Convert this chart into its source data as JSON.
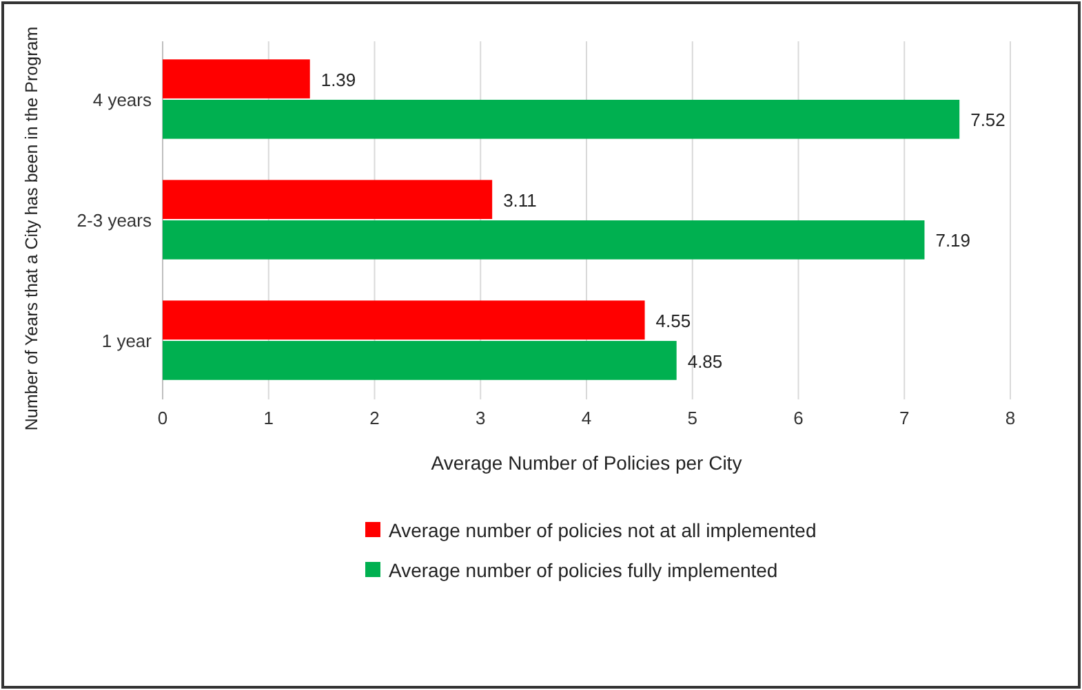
{
  "chart_data": {
    "type": "bar",
    "orientation": "horizontal",
    "categories": [
      "4 years",
      "2-3 years",
      "1 year"
    ],
    "series": [
      {
        "name": "Average number of policies not at all implemented",
        "color": "#ff0000",
        "values": [
          1.39,
          3.11,
          4.55
        ]
      },
      {
        "name": "Average number of policies fully implemented",
        "color": "#00b050",
        "values": [
          7.52,
          7.19,
          4.85
        ]
      }
    ],
    "xlim": [
      0,
      8
    ],
    "xticks": [
      0,
      1,
      2,
      3,
      4,
      5,
      6,
      7,
      8
    ],
    "xlabel": "Average Number of Policies per City",
    "ylabel": "Number of Years that a City has been in the Program",
    "grid": "x",
    "legend": "bottom",
    "data_labels": true
  }
}
